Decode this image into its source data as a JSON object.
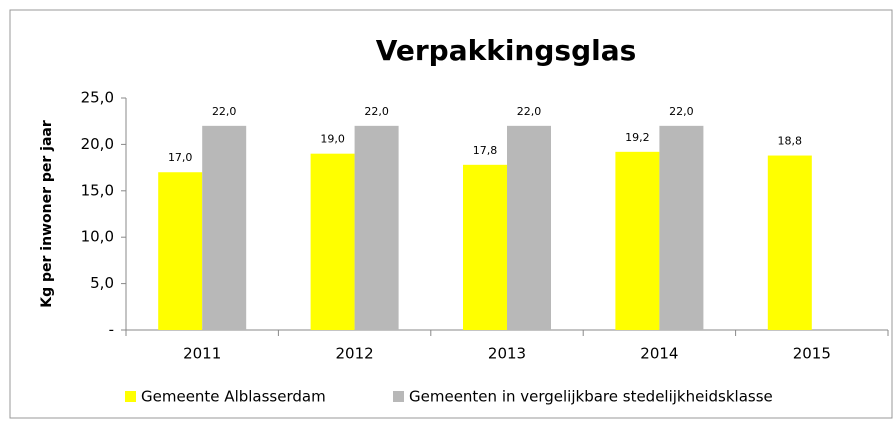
{
  "chart_data": {
    "type": "bar",
    "title": "Verpakkingsglas",
    "y_label": "Kg per inwoner per jaar",
    "categories": [
      "2011",
      "2012",
      "2013",
      "2014",
      "2015"
    ],
    "series": [
      {
        "name": "Gemeente Alblasserdam",
        "color": "#ffff00",
        "values": [
          17.0,
          19.0,
          17.8,
          19.2,
          18.8
        ],
        "value_labels": [
          "17,0",
          "19,0",
          "17,8",
          "19,2",
          "18,8"
        ]
      },
      {
        "name": "Gemeenten in vergelijkbare stedelijkheidsklasse",
        "color": "#b8b8b8",
        "values": [
          22.0,
          22.0,
          22.0,
          22.0,
          null
        ],
        "value_labels": [
          "22,0",
          "22,0",
          "22,0",
          "22,0",
          null
        ]
      }
    ],
    "ylim": [
      0,
      25
    ],
    "yticks": [
      {
        "value": 0,
        "label": "-"
      },
      {
        "value": 5,
        "label": "5,0"
      },
      {
        "value": 10,
        "label": "10,0"
      },
      {
        "value": 15,
        "label": "15,0"
      },
      {
        "value": 20,
        "label": "20,0"
      },
      {
        "value": 25,
        "label": "25,0"
      }
    ],
    "grid": false,
    "legend": "bottom"
  }
}
